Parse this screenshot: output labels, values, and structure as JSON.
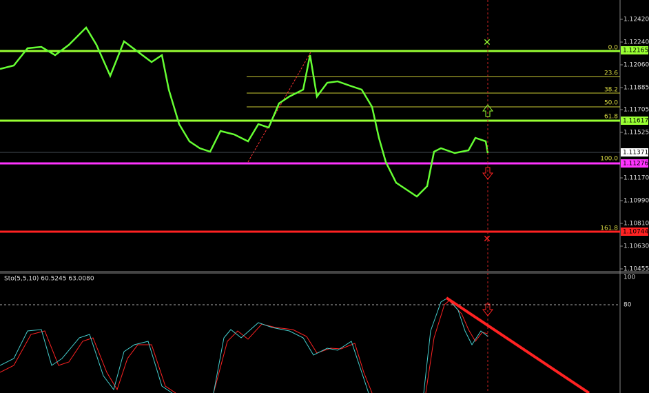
{
  "price_axis": {
    "ticks": [
      "1.12420",
      "1.12240",
      "1.12060",
      "1.11885",
      "1.11705",
      "1.11525",
      "1.11170",
      "1.10990",
      "1.10810",
      "1.10630",
      "1.10455"
    ]
  },
  "price_tags": [
    {
      "label": "1.12165",
      "color": "#99ff33"
    },
    {
      "label": "1.11617",
      "color": "#99ff33"
    },
    {
      "label": "1.11371",
      "color": "#ffffff"
    },
    {
      "label": "1.11276",
      "color": "#ff33ff"
    },
    {
      "label": "1.10744",
      "color": "#ff2222"
    }
  ],
  "fib_levels": [
    "0.0",
    "23.6",
    "38.2",
    "50.0",
    "61.8",
    "100.0",
    "161.8"
  ],
  "indicator": {
    "label": "Sto(5,5,10) 60.5245 63.0080",
    "axis": [
      "100",
      "80"
    ]
  }
}
